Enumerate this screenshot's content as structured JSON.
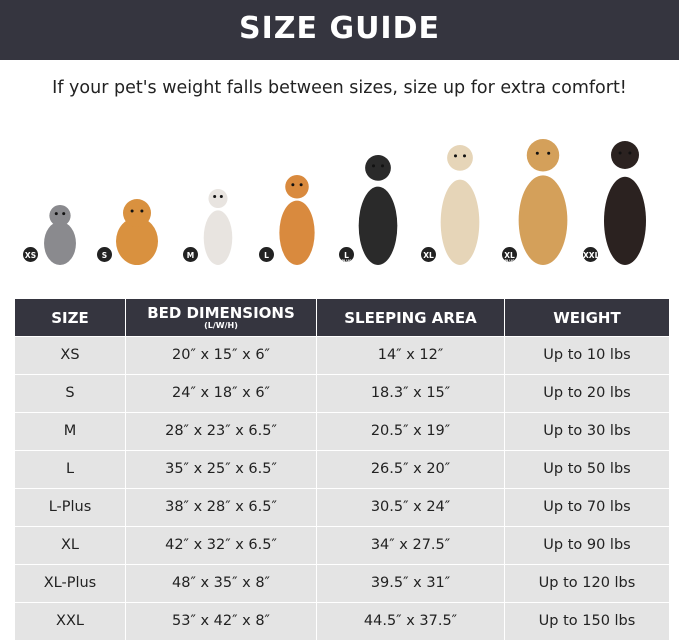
{
  "header": {
    "title": "SIZE GUIDE"
  },
  "subtitle": "If your pet's weight falls between sizes, size up for extra comfort!",
  "pets": [
    {
      "badge": "XS",
      "badge_sub": "",
      "animal": "cat",
      "color": "#8a8a8e"
    },
    {
      "badge": "S",
      "badge_sub": "",
      "animal": "pomeranian",
      "color": "#d9913f"
    },
    {
      "badge": "M",
      "badge_sub": "",
      "animal": "french-bulldog",
      "color": "#e8e4e0"
    },
    {
      "badge": "L",
      "badge_sub": "",
      "animal": "shiba-inu",
      "color": "#d98a3e"
    },
    {
      "badge": "L",
      "badge_sub": "PLUS",
      "animal": "border-collie",
      "color": "#2a2a2a"
    },
    {
      "badge": "XL",
      "badge_sub": "",
      "animal": "labrador",
      "color": "#e6d5b8"
    },
    {
      "badge": "XL",
      "badge_sub": "PLUS",
      "animal": "golden-retriever",
      "color": "#d4a05a"
    },
    {
      "badge": "XXL",
      "badge_sub": "",
      "animal": "doberman",
      "color": "#2b2220"
    }
  ],
  "table": {
    "headers": {
      "size": "SIZE",
      "dimensions": "BED DIMENSIONS",
      "dimensions_sub": "(L/W/H)",
      "sleeping": "SLEEPING AREA",
      "weight": "WEIGHT"
    },
    "rows": [
      [
        "XS",
        "20″ x 15″ x 6″",
        "14″ x 12″",
        "Up to 10 lbs"
      ],
      [
        "S",
        "24″ x 18″ x 6″",
        "18.3″ x 15″",
        "Up to 20 lbs"
      ],
      [
        "M",
        "28″ x 23″ x 6.5″",
        "20.5″ x 19″",
        "Up to 30 lbs"
      ],
      [
        "L",
        "35″ x 25″ x 6.5″",
        "26.5″ x 20″",
        "Up to 50 lbs"
      ],
      [
        "L-Plus",
        "38″ x 28″ x 6.5″",
        "30.5″ x 24″",
        "Up to 70 lbs"
      ],
      [
        "XL",
        "42″ x 32″ x 6.5″",
        "34″ x 27.5″",
        "Up to 90 lbs"
      ],
      [
        "XL-Plus",
        "48″ x 35″ x 8″",
        "39.5″ x 31″",
        "Up to 120 lbs"
      ],
      [
        "XXL",
        "53″ x 42″ x 8″",
        "44.5″ x 37.5″",
        "Up to 150 lbs"
      ]
    ]
  },
  "colors": {
    "header_bg": "#35353f",
    "row_bg": "#e4e4e4"
  }
}
